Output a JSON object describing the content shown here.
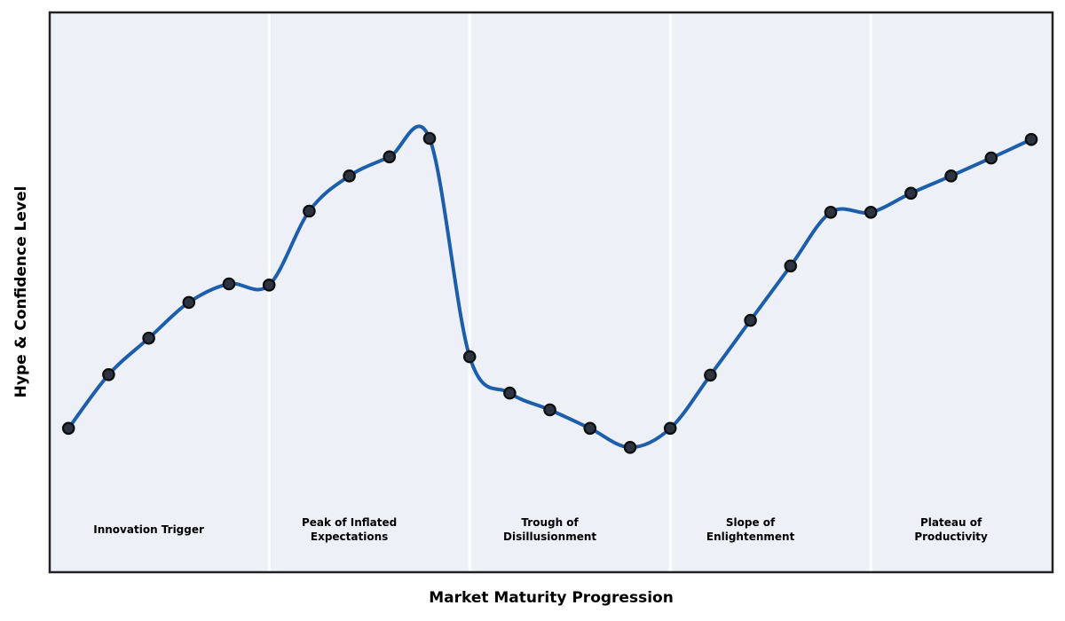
{
  "chart_data": {
    "type": "line",
    "title": "",
    "xlabel": "Market Maturity Progression",
    "ylabel": "Hype & Confidence Level",
    "legend": "none",
    "grid": false,
    "x": [
      0,
      1,
      2,
      3,
      4,
      5,
      6,
      7,
      8,
      9,
      10,
      11,
      12,
      13,
      14,
      15,
      16,
      17,
      18,
      19,
      20,
      21,
      22,
      23,
      24
    ],
    "series": [
      {
        "name": "Hype & Confidence Level",
        "values": [
          25.7,
          35.3,
          41.8,
          48.2,
          51.5,
          51.3,
          64.5,
          70.8,
          74.2,
          77.5,
          38.5,
          32.0,
          29.0,
          25.7,
          22.3,
          25.7,
          35.2,
          45.0,
          54.7,
          64.3,
          64.3,
          67.7,
          70.8,
          74.0,
          77.3
        ]
      }
    ],
    "xlim": [
      -0.47,
      24.53
    ],
    "ylim": [
      0,
      100
    ],
    "curve_style": "smooth-spline-through-points",
    "phase_dividers_x": [
      5,
      10,
      15,
      20
    ],
    "phases": [
      {
        "label": "Innovation Trigger",
        "x_center": 2
      },
      {
        "label": "Peak of Inflated\nExpectations",
        "x_center": 7
      },
      {
        "label": "Trough of\nDisillusionment",
        "x_center": 12
      },
      {
        "label": "Slope of\nEnlightenment",
        "x_center": 17
      },
      {
        "label": "Plateau of\nProductivity",
        "x_center": 22
      }
    ],
    "phase_label_y": 597,
    "colors": {
      "page_bg": "#ffffff",
      "plot_bg": "#edf1f7",
      "divider": "#ffffff",
      "spine": "#222222",
      "line": "#1c5eab",
      "marker_fill": "#2b3440",
      "marker_edge": "#0d0d0d",
      "text": "#000000"
    }
  }
}
